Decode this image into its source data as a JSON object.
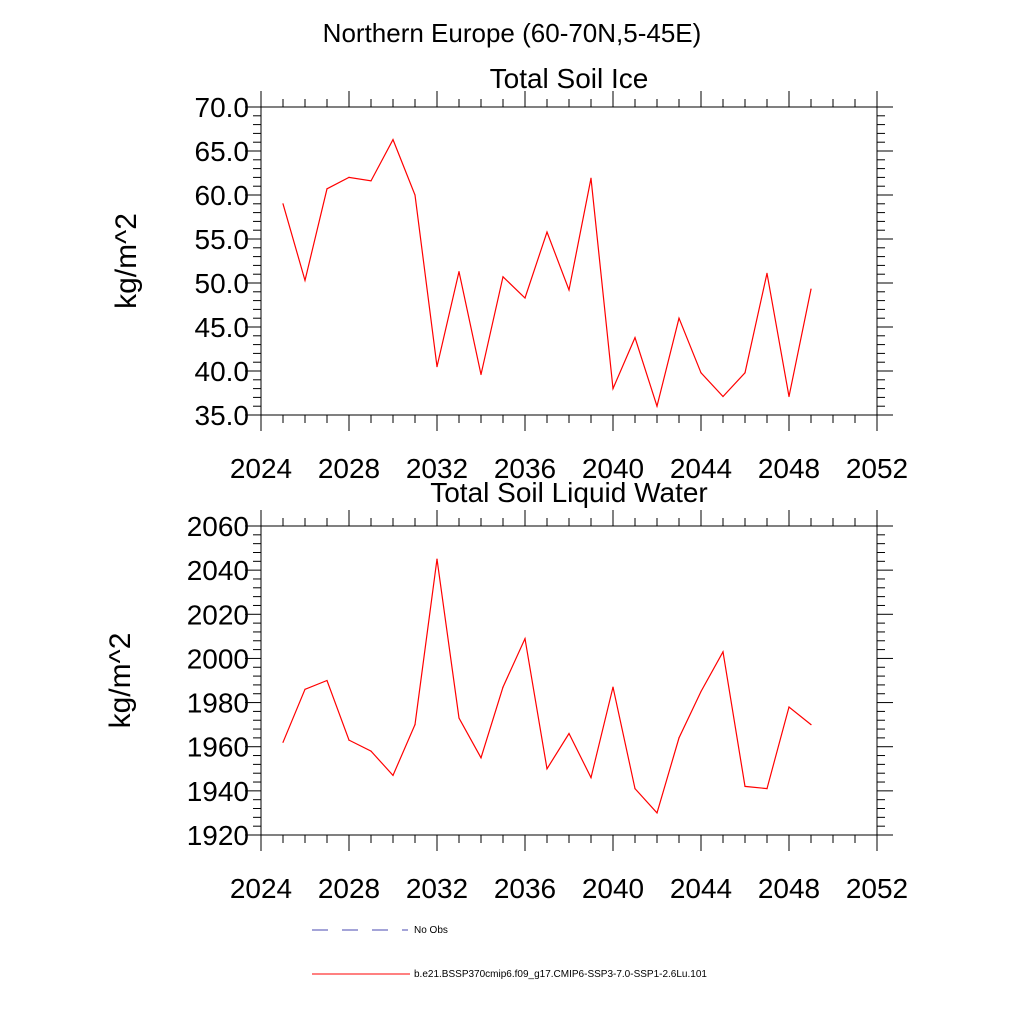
{
  "figure": {
    "title": "Northern Europe (60-70N,5-45E)"
  },
  "chart_data": [
    {
      "type": "line",
      "title": "Total Soil Ice",
      "ylabel": "kg/m^2",
      "xlabel": "",
      "xlim": [
        2024,
        2052
      ],
      "ylim": [
        35,
        70
      ],
      "xticks": [
        2024,
        2028,
        2032,
        2036,
        2040,
        2044,
        2048,
        2052
      ],
      "xtick_labels": [
        "2024",
        "2028",
        "2032",
        "2036",
        "2040",
        "2044",
        "2048",
        "2052"
      ],
      "yticks": [
        35,
        40,
        45,
        50,
        55,
        60,
        65,
        70
      ],
      "ytick_labels": [
        "35.0",
        "40.0",
        "45.0",
        "50.0",
        "55.0",
        "60.0",
        "65.0",
        "70.0"
      ],
      "grid": false,
      "series": [
        {
          "name": "b.e21.BSSP370cmip6.f09_g17.CMIP6-SSP3-7.0-SSP1-2.6Lu.101",
          "color": "#ff0000",
          "x": [
            2025,
            2026,
            2027,
            2028,
            2029,
            2030,
            2031,
            2032,
            2033,
            2034,
            2035,
            2036,
            2037,
            2038,
            2039,
            2040,
            2041,
            2042,
            2043,
            2044,
            2045,
            2046,
            2047,
            2048,
            2049
          ],
          "y": [
            59.0,
            50.3,
            60.7,
            62.0,
            61.6,
            66.3,
            60.0,
            40.5,
            51.3,
            39.6,
            50.7,
            48.3,
            55.8,
            49.2,
            61.9,
            38.0,
            43.8,
            36.0,
            46.0,
            39.8,
            37.1,
            39.8,
            51.1,
            37.1,
            49.3
          ]
        }
      ]
    },
    {
      "type": "line",
      "title": "Total Soil Liquid Water",
      "ylabel": "kg/m^2",
      "xlabel": "",
      "xlim": [
        2024,
        2052
      ],
      "ylim": [
        1920,
        2060
      ],
      "xticks": [
        2024,
        2028,
        2032,
        2036,
        2040,
        2044,
        2048,
        2052
      ],
      "xtick_labels": [
        "2024",
        "2028",
        "2032",
        "2036",
        "2040",
        "2044",
        "2048",
        "2052"
      ],
      "yticks": [
        1920,
        1940,
        1960,
        1980,
        2000,
        2020,
        2040,
        2060
      ],
      "ytick_labels": [
        "1920",
        "1940",
        "1960",
        "1980",
        "2000",
        "2020",
        "2040",
        "2060"
      ],
      "grid": false,
      "series": [
        {
          "name": "b.e21.BSSP370cmip6.f09_g17.CMIP6-SSP3-7.0-SSP1-2.6Lu.101",
          "color": "#ff0000",
          "x": [
            2025,
            2026,
            2027,
            2028,
            2029,
            2030,
            2031,
            2032,
            2033,
            2034,
            2035,
            2036,
            2037,
            2038,
            2039,
            2040,
            2041,
            2042,
            2043,
            2044,
            2045,
            2046,
            2047,
            2048,
            2049
          ],
          "y": [
            1962,
            1986,
            1990,
            1963,
            1958,
            1947,
            1970,
            2045,
            1973,
            1955,
            1987,
            2009,
            1950,
            1966,
            1946,
            1987,
            1941,
            1930,
            1964,
            1985,
            2003,
            1942,
            1941,
            1978,
            1970
          ]
        }
      ]
    }
  ],
  "legend": {
    "placement": "bottom",
    "entries": [
      {
        "label": "No Obs",
        "color": "#4a4ab0",
        "style": "dashed"
      },
      {
        "label": "b.e21.BSSP370cmip6.f09_g17.CMIP6-SSP3-7.0-SSP1-2.6Lu.101",
        "color": "#ff0000",
        "style": "solid"
      }
    ]
  }
}
